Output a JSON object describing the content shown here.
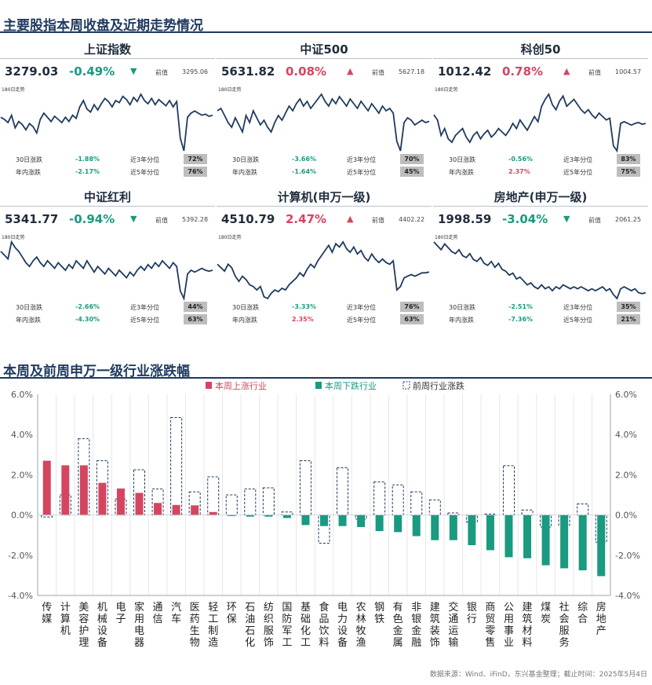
{
  "top_title": "主要股指本周收盘及近期走势情况",
  "bottom_title": "本周及前周申万一级行业涨跌幅",
  "colors": {
    "up": "#d64560",
    "down": "#1a9a80",
    "line": "#1f3a5f",
    "dashed": "#1f3a5f"
  },
  "panels": [
    {
      "name": "上证指数",
      "value": "3279.03",
      "change": "-0.49%",
      "direction": "down",
      "prev_label": "前值",
      "prev_value": "3295.06",
      "trend_label": "180日走势",
      "row1_label": "30日涨跌",
      "row1_value": "-1.88%",
      "row1_dir": "down",
      "row1_pct_label": "近3年分位",
      "row1_pct": "72%",
      "row2_label": "年内涨跌",
      "row2_value": "-2.17%",
      "row2_dir": "down",
      "row2_pct_label": "近5年分位",
      "row2_pct": "76%",
      "series": [
        40,
        38,
        35,
        42,
        30,
        36,
        33,
        28,
        34,
        31,
        25,
        38,
        44,
        40,
        36,
        41,
        38,
        35,
        40,
        36,
        42,
        39,
        50,
        56,
        48,
        45,
        52,
        47,
        53,
        58,
        55,
        50,
        56,
        54,
        60,
        57,
        52,
        59,
        55,
        62,
        56,
        53,
        58,
        52,
        57,
        54,
        51,
        56,
        50,
        55,
        20,
        8,
        40,
        44,
        46,
        44,
        42,
        43,
        41,
        42
      ]
    },
    {
      "name": "中证500",
      "value": "5631.82",
      "change": "0.08%",
      "direction": "up",
      "prev_label": "前值",
      "prev_value": "5627.18",
      "trend_label": "180日走势",
      "row1_label": "30日涨跌",
      "row1_value": "-3.66%",
      "row1_dir": "down",
      "row1_pct_label": "近3年分位",
      "row1_pct": "70%",
      "row2_label": "年内涨跌",
      "row2_value": "-1.64%",
      "row2_dir": "down",
      "row2_pct_label": "近5年分位",
      "row2_pct": "45%",
      "series": [
        40,
        42,
        36,
        30,
        26,
        34,
        28,
        22,
        36,
        30,
        40,
        34,
        28,
        32,
        26,
        22,
        30,
        36,
        32,
        38,
        44,
        40,
        46,
        50,
        44,
        48,
        42,
        46,
        50,
        54,
        48,
        44,
        50,
        46,
        52,
        48,
        44,
        50,
        46,
        42,
        48,
        44,
        40,
        46,
        42,
        38,
        44,
        40,
        42,
        38,
        14,
        6,
        30,
        34,
        32,
        28,
        30,
        32,
        30,
        31
      ]
    },
    {
      "name": "科创50",
      "value": "1012.42",
      "change": "0.78%",
      "direction": "up",
      "prev_label": "前值",
      "prev_value": "1004.57",
      "trend_label": "180日走势",
      "row1_label": "30日涨跌",
      "row1_value": "-0.56%",
      "row1_dir": "down",
      "row1_pct_label": "近3年分位",
      "row1_pct": "83%",
      "row2_label": "年内涨跌",
      "row2_value": "2.37%",
      "row2_dir": "up",
      "row2_pct_label": "近5年分位",
      "row2_pct": "75%",
      "series": [
        46,
        40,
        22,
        30,
        18,
        14,
        22,
        26,
        30,
        20,
        14,
        22,
        26,
        18,
        24,
        28,
        20,
        24,
        30,
        26,
        22,
        28,
        36,
        30,
        40,
        34,
        28,
        36,
        44,
        38,
        56,
        64,
        70,
        58,
        52,
        62,
        68,
        56,
        60,
        64,
        58,
        52,
        48,
        52,
        46,
        42,
        48,
        44,
        40,
        42,
        10,
        4,
        36,
        38,
        36,
        34,
        36,
        37,
        35,
        36
      ]
    },
    {
      "name": "中证红利",
      "value": "5341.77",
      "change": "-0.94%",
      "direction": "down",
      "prev_label": "前值",
      "prev_value": "5392.28",
      "trend_label": "180日走势",
      "row1_label": "30日涨跌",
      "row1_value": "-2.66%",
      "row1_dir": "down",
      "row1_pct_label": "近3年分位",
      "row1_pct": "44%",
      "row2_label": "年内涨跌",
      "row2_value": "-4.30%",
      "row2_dir": "down",
      "row2_pct_label": "近5年分位",
      "row2_pct": "63%",
      "series": [
        56,
        52,
        48,
        66,
        60,
        56,
        50,
        44,
        40,
        46,
        50,
        44,
        40,
        46,
        42,
        38,
        44,
        40,
        36,
        42,
        38,
        46,
        42,
        38,
        46,
        40,
        34,
        40,
        36,
        32,
        38,
        34,
        30,
        36,
        32,
        28,
        34,
        30,
        36,
        40,
        36,
        42,
        38,
        44,
        40,
        46,
        42,
        38,
        44,
        40,
        14,
        6,
        32,
        36,
        34,
        36,
        38,
        36,
        35,
        36
      ]
    },
    {
      "name": "计算机(申万一级)",
      "value": "4510.79",
      "change": "2.47%",
      "direction": "up",
      "prev_label": "前值",
      "prev_value": "4402.22",
      "trend_label": "180日走势",
      "row1_label": "30日涨跌",
      "row1_value": "-3.33%",
      "row1_dir": "down",
      "row1_pct_label": "近3年分位",
      "row1_pct": "76%",
      "row2_label": "年内涨跌",
      "row2_value": "2.35%",
      "row2_dir": "up",
      "row2_pct_label": "近5年分位",
      "row2_pct": "63%",
      "series": [
        44,
        40,
        36,
        44,
        40,
        30,
        24,
        30,
        26,
        20,
        18,
        14,
        18,
        6,
        4,
        10,
        14,
        12,
        16,
        14,
        20,
        24,
        28,
        34,
        30,
        38,
        44,
        40,
        48,
        54,
        60,
        66,
        58,
        68,
        64,
        70,
        62,
        58,
        64,
        56,
        60,
        52,
        48,
        56,
        50,
        46,
        50,
        46,
        44,
        48,
        14,
        18,
        28,
        30,
        32,
        30,
        32,
        34,
        34,
        35
      ]
    },
    {
      "name": "房地产(申万一级)",
      "value": "1998.59",
      "change": "-3.04%",
      "direction": "down",
      "prev_label": "前值",
      "prev_value": "2061.25",
      "trend_label": "180日走势",
      "row1_label": "30日涨跌",
      "row1_value": "-2.51%",
      "row1_dir": "down",
      "row1_pct_label": "近3年分位",
      "row1_pct": "35%",
      "row2_label": "年内涨跌",
      "row2_value": "-7.36%",
      "row2_dir": "down",
      "row2_pct_label": "近5年分位",
      "row2_pct": "21%",
      "series": [
        60,
        56,
        52,
        58,
        54,
        50,
        48,
        52,
        46,
        44,
        48,
        42,
        40,
        44,
        38,
        36,
        40,
        34,
        38,
        32,
        30,
        26,
        28,
        22,
        24,
        20,
        16,
        18,
        14,
        12,
        16,
        12,
        14,
        10,
        14,
        12,
        16,
        14,
        12,
        14,
        12,
        14,
        12,
        10,
        12,
        10,
        12,
        14,
        10,
        12,
        6,
        2,
        12,
        14,
        12,
        10,
        12,
        8,
        7,
        8
      ]
    }
  ],
  "chart_data": {
    "type": "bar",
    "title": "本周及前周申万一级行业涨跌幅",
    "categories": [
      "传媒",
      "计算机",
      "美容护理",
      "机械设备",
      "电子",
      "家用电器",
      "通信",
      "汽车",
      "医药生物",
      "轻工制造",
      "环保",
      "石油石化",
      "纺织服饰",
      "国防军工",
      "基础化工",
      "食品饮料",
      "电力设备",
      "农林牧渔",
      "钢铁",
      "有色金属",
      "非银金融",
      "建筑装饰",
      "交通运输",
      "银行",
      "商贸零售",
      "公用事业",
      "建筑材料",
      "煤炭",
      "社会服务",
      "综合",
      "房地产"
    ],
    "series": [
      {
        "name": "本周上涨行业",
        "role": "this_week",
        "values": [
          2.7,
          2.47,
          2.47,
          1.6,
          1.32,
          1.1,
          0.6,
          0.5,
          0.48,
          0.15,
          -0.05,
          -0.08,
          -0.08,
          -0.15,
          -0.5,
          -0.55,
          -0.55,
          -0.6,
          -0.8,
          -0.85,
          -1.05,
          -1.25,
          -1.25,
          -1.5,
          -1.75,
          -2.1,
          -2.15,
          -2.5,
          -2.65,
          -2.75,
          -3.04
        ]
      },
      {
        "name": "本周下跌行业",
        "role": "this_week_down_legend"
      },
      {
        "name": "前周行业涨跌",
        "role": "prior_week",
        "values": [
          -0.1,
          1.0,
          3.8,
          2.7,
          0.8,
          2.25,
          1.3,
          4.85,
          1.15,
          1.9,
          1.0,
          1.3,
          1.35,
          0.15,
          2.7,
          -1.4,
          2.35,
          -0.2,
          1.65,
          1.5,
          1.15,
          0.75,
          0.1,
          -0.35,
          0.05,
          2.45,
          0.25,
          -0.6,
          -0.5,
          0.55,
          -1.35
        ]
      }
    ],
    "ylim": [
      -4,
      6
    ],
    "yticks": [
      "-4.0%",
      "-2.0%",
      "0.0%",
      "2.0%",
      "4.0%",
      "6.0%"
    ],
    "legend_position": "top-center",
    "grid": "vertical"
  },
  "footer": "数据来源：Wind、iFinD，东兴基金整理；截止时间：2025年5月4日"
}
